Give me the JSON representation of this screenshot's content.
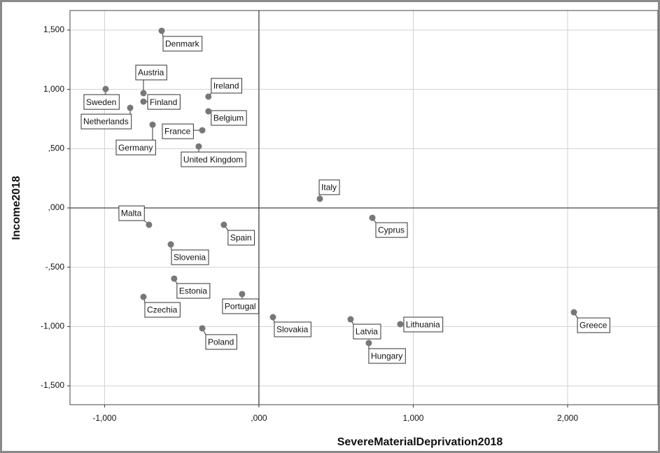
{
  "chart_data": {
    "type": "scatter",
    "x_label": "SevereMaterialDeprivation2018",
    "y_label": "Income2018",
    "labels": [
      "Denmark",
      "Austria",
      "Sweden",
      "Finland",
      "Netherlands",
      "Ireland",
      "Belgium",
      "Germany",
      "France",
      "United Kingdom",
      "Italy",
      "Cyprus",
      "Malta",
      "Spain",
      "Slovenia",
      "Estonia",
      "Czechia",
      "Portugal",
      "Poland",
      "Slovakia",
      "Latvia",
      "Hungary",
      "Lithuania",
      "Greece"
    ],
    "x": [
      -630,
      -748,
      -993,
      -748,
      -834,
      -327,
      -327,
      -689,
      -367,
      -390,
      395,
      735,
      -712,
      -227,
      -571,
      -549,
      -748,
      -109,
      -367,
      91,
      594,
      712,
      916,
      2041
    ],
    "values": [
      1494,
      968,
      1003,
      897,
      844,
      939,
      815,
      702,
      655,
      519,
      77,
      -83,
      -142,
      -142,
      -307,
      -596,
      -750,
      -726,
      -1015,
      -921,
      -939,
      -1139,
      -980,
      -880
    ],
    "color": "#777777",
    "xlim": [
      -1224,
      2585
    ],
    "ylim": [
      -1659,
      1665
    ],
    "xticks": [
      {
        "value": -1000,
        "label": "-1,000"
      },
      {
        "value": 0,
        "label": ",000"
      },
      {
        "value": 1000,
        "label": "1,000"
      },
      {
        "value": 2000,
        "label": "2,000"
      }
    ],
    "yticks": [
      {
        "value": 1500,
        "label": "1,500"
      },
      {
        "value": 1000,
        "label": "1,000"
      },
      {
        "value": 500,
        "label": ",500"
      },
      {
        "value": 0,
        "label": ",000"
      },
      {
        "value": -500,
        "label": "-,500"
      },
      {
        "value": -1000,
        "label": "-1,000"
      },
      {
        "value": -1500,
        "label": "-1,500"
      }
    ],
    "grid": true,
    "reference_lines": true
  }
}
